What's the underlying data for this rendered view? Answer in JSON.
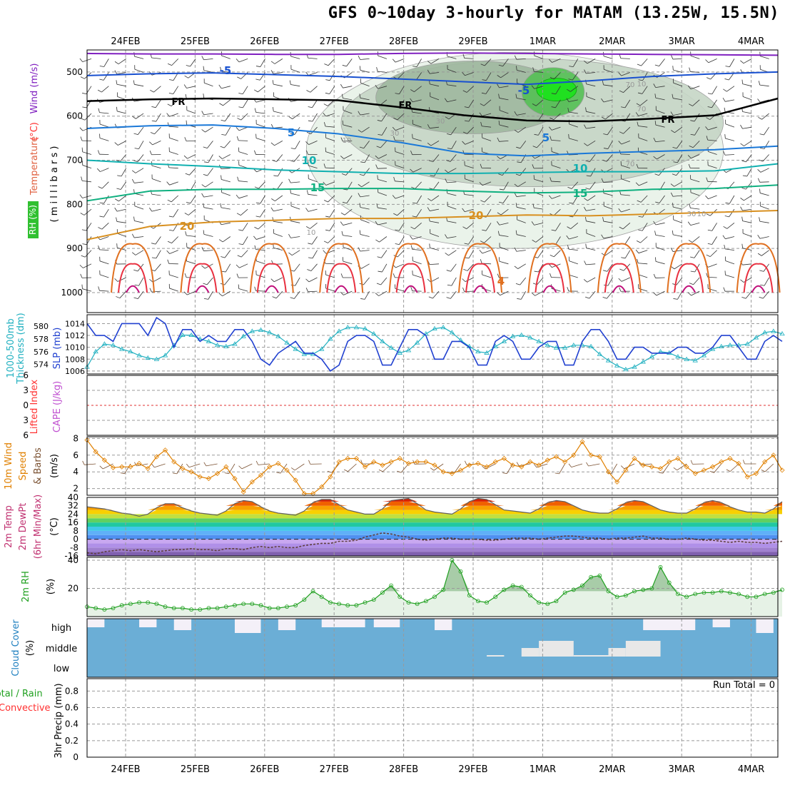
{
  "title": "GFS 0~10day 3-hourly for MATAM (13.25W, 15.5N)",
  "colors": {
    "temperature": "#ff3030",
    "wind": "#a020f0",
    "rh": "#00c000",
    "thickness": "#20b0c0",
    "slp": "#2040d0",
    "lifted": "#ff3030",
    "cape": "#c050d0",
    "speed": "#e08000",
    "dewpt": "#c03070",
    "rh2m": "#20a020",
    "cloud": "#2080c0",
    "precip_total": "#20a020",
    "precip_conv": "#ff3030",
    "cloud_fill": "#6baed6",
    "grid": "#999999"
  },
  "chart_data": [
    {
      "type": "line",
      "id": "upper_air",
      "x_dates": [
        "24FEB",
        "25FEB",
        "26FEB",
        "27FEB",
        "28FEB",
        "29FEB",
        "1MAR",
        "2MAR",
        "3MAR",
        "4MAR"
      ],
      "ylabel_parts": [
        "RH (%)",
        "Temperature",
        " (°C)",
        "Wind",
        " (m/s)"
      ],
      "ylabel_sub": "( m i l l i b a r s )",
      "y_ticks": [
        500,
        600,
        700,
        800,
        900,
        1000
      ],
      "y_range": [
        450,
        1000
      ],
      "contour_labels": {
        "temp": [
          "-5",
          "-5",
          "FR",
          "FR",
          "FR",
          "5",
          "5",
          "10",
          "10",
          "15",
          "15",
          "20",
          "20",
          "4"
        ],
        "rh": [
          "10",
          "30",
          "10",
          "70",
          "30",
          "10",
          "70",
          "10",
          "30",
          "70"
        ]
      },
      "isotherms": [
        {
          "name": "-10",
          "p": [
            458,
            459,
            459,
            460,
            460,
            458,
            457,
            458,
            459,
            460,
            461,
            462
          ]
        },
        {
          "name": "-5",
          "p": [
            508,
            504,
            502,
            506,
            510,
            516,
            522,
            528,
            520,
            510,
            504,
            500
          ]
        },
        {
          "name": "FR",
          "p": [
            566,
            562,
            560,
            562,
            564,
            580,
            598,
            610,
            612,
            606,
            598,
            560
          ]
        },
        {
          "name": "5",
          "p": [
            628,
            622,
            620,
            628,
            640,
            660,
            684,
            690,
            684,
            680,
            676,
            668
          ]
        },
        {
          "name": "10",
          "p": [
            700,
            708,
            714,
            722,
            726,
            730,
            730,
            728,
            726,
            726,
            724,
            708
          ]
        },
        {
          "name": "15",
          "p": [
            792,
            770,
            766,
            766,
            764,
            764,
            770,
            774,
            772,
            766,
            764,
            756
          ]
        },
        {
          "name": "20",
          "p": [
            880,
            850,
            840,
            836,
            832,
            832,
            828,
            824,
            826,
            822,
            818,
            814
          ]
        }
      ],
      "rh_patches": [
        {
          "name": "rh-10",
          "d0": 3.6,
          "d1": 9.6,
          "p0": 455,
          "p1": 900,
          "level": 10
        },
        {
          "name": "rh-30",
          "d0": 4.1,
          "d1": 9.6,
          "p0": 470,
          "p1": 760,
          "level": 30
        },
        {
          "name": "rh-50",
          "d0": 4.6,
          "d1": 7.4,
          "p0": 475,
          "p1": 640,
          "level": 50
        },
        {
          "name": "rh-70",
          "d0": 6.7,
          "d1": 7.6,
          "p0": 490,
          "p1": 600,
          "level": 70
        }
      ]
    },
    {
      "type": "line",
      "id": "slp_thickness",
      "ylabel_parts": [
        "1000-500mb",
        "Thickness (dm)",
        "SLP (mb)"
      ],
      "y_left_ticks": [
        574,
        576,
        578,
        580
      ],
      "y_left_range": [
        572.5,
        581.8
      ],
      "y_right_ticks": [
        1006,
        1008,
        1010,
        1012,
        1014
      ],
      "y_right_range": [
        1005.5,
        1015.5
      ],
      "series": [
        {
          "name": "SLP (mb)",
          "axis": "right",
          "values": [
            1014,
            1012,
            1012,
            1011,
            1014,
            1014,
            1014,
            1012,
            1015,
            1014,
            1010,
            1013,
            1013,
            1011,
            1012,
            1011,
            1011,
            1013,
            1013,
            1011,
            1008,
            1007,
            1009,
            1010,
            1011,
            1009,
            1009,
            1008,
            1006,
            1007,
            1011,
            1012,
            1012,
            1011,
            1007,
            1007,
            1010,
            1013,
            1013,
            1012,
            1008,
            1008,
            1011,
            1011,
            1010,
            1007,
            1007,
            1011,
            1012,
            1011,
            1008,
            1008,
            1010,
            1011,
            1011,
            1007,
            1007,
            1011,
            1013,
            1013,
            1011,
            1008,
            1008,
            1010,
            1010,
            1009,
            1009,
            1009,
            1010,
            1010,
            1009,
            1009,
            1010,
            1012,
            1012,
            1010,
            1008,
            1008,
            1011,
            1012,
            1011
          ]
        },
        {
          "name": "1000-500mb Thickness (dm)",
          "axis": "left",
          "values": [
            573.6,
            576.0,
            577.2,
            577.0,
            576.4,
            576.0,
            575.4,
            575.0,
            574.8,
            575.4,
            577.0,
            578.6,
            578.6,
            578.0,
            577.6,
            577.0,
            576.8,
            577.2,
            578.4,
            579.2,
            579.4,
            579.0,
            578.4,
            577.4,
            576.4,
            575.6,
            575.6,
            576.4,
            578.0,
            579.2,
            579.8,
            579.8,
            579.6,
            578.8,
            577.6,
            576.6,
            575.8,
            576.2,
            577.4,
            578.8,
            579.6,
            579.8,
            579.0,
            577.8,
            576.8,
            576.0,
            575.8,
            576.8,
            577.6,
            578.4,
            578.6,
            578.2,
            577.6,
            577.0,
            576.6,
            576.6,
            577.0,
            577.0,
            576.8,
            575.6,
            574.6,
            573.8,
            573.2,
            573.6,
            574.4,
            575.2,
            576.0,
            575.8,
            575.2,
            574.8,
            574.6,
            575.4,
            576.4,
            576.8,
            577.0,
            577.0,
            577.2,
            578.2,
            579.0,
            579.2,
            578.8
          ]
        }
      ]
    },
    {
      "type": "line",
      "id": "lifted_cape",
      "ylabel_parts": [
        "Lifted Index",
        "CAPE (J/kg)"
      ],
      "y_ticks": [
        -6,
        -3,
        0,
        3,
        6
      ],
      "y_tick_labels": [
        "6",
        "3",
        "0",
        "3",
        "6"
      ],
      "y_range": [
        -6,
        6
      ]
    },
    {
      "type": "line",
      "id": "wind10m",
      "ylabel_parts": [
        "10m Wind",
        "Speed",
        "& Barbs",
        "(m/s)"
      ],
      "y_ticks": [
        2,
        4,
        6,
        8
      ],
      "y_range": [
        1.2,
        8.2
      ],
      "series": [
        {
          "name": "Speed",
          "values": [
            7.8,
            6.4,
            5.4,
            4.5,
            4.6,
            4.6,
            5.0,
            4.4,
            5.8,
            6.6,
            5.2,
            4.4,
            4.0,
            3.4,
            3.2,
            3.8,
            4.6,
            3.2,
            1.6,
            2.8,
            3.6,
            4.6,
            5.0,
            4.2,
            3.0,
            1.4,
            1.4,
            2.2,
            3.4,
            5.2,
            5.6,
            5.6,
            4.6,
            5.2,
            4.8,
            5.2,
            5.6,
            5.0,
            5.2,
            5.2,
            4.8,
            4.0,
            3.8,
            4.2,
            4.8,
            5.0,
            4.6,
            5.2,
            5.6,
            4.8,
            4.6,
            5.2,
            4.8,
            5.4,
            5.8,
            5.2,
            6.0,
            7.6,
            6.0,
            5.8,
            4.0,
            2.8,
            4.2,
            5.6,
            4.8,
            4.6,
            4.4,
            5.2,
            5.6,
            4.6,
            3.8,
            4.2,
            4.6,
            5.2,
            5.6,
            5.0,
            3.4,
            3.8,
            5.2,
            6.0,
            4.2
          ]
        }
      ]
    },
    {
      "type": "area",
      "id": "temp2m",
      "ylabel_parts": [
        "2m Temp",
        "2m DewPt",
        "(6hr Min/Max)",
        "(°C)"
      ],
      "y_ticks": [
        -16,
        -8,
        0,
        8,
        16,
        24,
        32,
        40
      ],
      "y_tick_labels": [
        "-16",
        "-8",
        "0",
        "8",
        "16",
        "24",
        "32",
        "40"
      ],
      "y_range": [
        -16,
        40
      ],
      "series": [
        {
          "name": "2m Temp",
          "values": [
            31,
            30,
            29,
            27,
            25,
            24,
            22,
            24,
            30,
            34,
            34,
            30,
            27,
            25,
            24,
            23,
            27,
            34,
            37,
            36,
            31,
            27,
            25,
            24,
            23,
            27,
            35,
            38,
            38,
            33,
            28,
            26,
            24,
            24,
            29,
            37,
            38,
            39,
            34,
            28,
            26,
            25,
            24,
            29,
            36,
            39,
            38,
            33,
            28,
            27,
            26,
            25,
            29,
            35,
            37,
            36,
            32,
            28,
            26,
            25,
            25,
            29,
            35,
            37,
            36,
            32,
            28,
            26,
            25,
            25,
            29,
            35,
            37,
            35,
            31,
            28,
            26,
            26,
            25,
            29,
            36
          ]
        },
        {
          "name": "2m DewPt",
          "values": [
            -13,
            -14,
            -12,
            -11,
            -10,
            -11,
            -10,
            -11,
            -12,
            -11,
            -10,
            -10,
            -9,
            -10,
            -10,
            -11,
            -9,
            -9,
            -10,
            -8,
            -7,
            -8,
            -7,
            -8,
            -8,
            -6,
            -5,
            -4,
            -4,
            -2,
            -2,
            -1,
            2,
            4,
            6,
            5,
            3,
            2,
            0,
            -1,
            0,
            1,
            1,
            0,
            0,
            0,
            -1,
            -1,
            0,
            1,
            1,
            1,
            0,
            1,
            2,
            3,
            3,
            2,
            1,
            1,
            0,
            1,
            1,
            2,
            3,
            1,
            1,
            0,
            0,
            1,
            0,
            -1,
            -1,
            -2,
            -3,
            -2,
            -3,
            -3,
            -4,
            -3,
            -2
          ]
        }
      ]
    },
    {
      "type": "area",
      "id": "rh2m",
      "ylabel_parts": [
        "2m RH",
        "(%)"
      ],
      "y_ticks": [
        20,
        40
      ],
      "y_range": [
        0,
        42
      ],
      "series": [
        {
          "name": "2m RH",
          "values": [
            7,
            6,
            5,
            6,
            8,
            9,
            10,
            10,
            9,
            7,
            6,
            6,
            5,
            5,
            6,
            6,
            7,
            8,
            9,
            9,
            8,
            6,
            6,
            7,
            8,
            12,
            18,
            14,
            10,
            9,
            8,
            8,
            10,
            12,
            17,
            22,
            14,
            10,
            9,
            11,
            14,
            19,
            40,
            32,
            15,
            11,
            10,
            14,
            19,
            22,
            21,
            15,
            10,
            9,
            11,
            17,
            19,
            22,
            28,
            29,
            18,
            14,
            15,
            18,
            19,
            20,
            35,
            24,
            16,
            14,
            16,
            17,
            17,
            18,
            17,
            16,
            14,
            14,
            16,
            17,
            19
          ]
        }
      ]
    },
    {
      "type": "heatmap",
      "id": "cloud",
      "ylabel_parts": [
        "Cloud Cover",
        "(%)"
      ],
      "rows": [
        "high",
        "middle",
        "low"
      ]
    },
    {
      "type": "bar",
      "id": "precip",
      "ylabel_parts": [
        "Total / Rain",
        "Convective",
        "3hr Precip (mm)"
      ],
      "annotation": "Run Total = 0",
      "y_ticks": [
        0,
        0.2,
        0.4,
        0.6,
        0.8
      ],
      "y_tick_labels": [
        "0",
        "0.2",
        "0.4",
        "0.6",
        "0.8"
      ],
      "y_range": [
        0,
        0.95
      ],
      "values": []
    }
  ]
}
